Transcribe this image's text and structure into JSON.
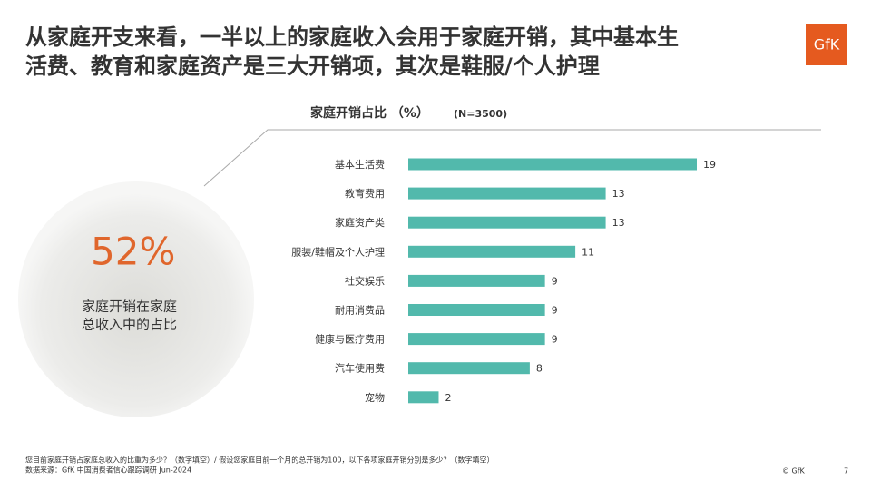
{
  "header": {
    "title": [
      "从家庭开支来看，一半以上的家庭收入会用于家庭开销，其中基本生",
      "活费、教育和家庭资产是三大开销项，其次是鞋服/个人护理"
    ]
  },
  "logo": "GfK",
  "highlight": {
    "figure": "52%",
    "caption": [
      "家庭开销在家庭",
      "总收入中的占比"
    ]
  },
  "chart_data": {
    "type": "bar",
    "orientation": "horizontal",
    "title": "家庭开销占比 （%）",
    "subtitle": "(N=3500)",
    "categories": [
      "基本生活费",
      "教育费用",
      "家庭资产类",
      "服装/鞋帽及个人护理",
      "社交娱乐",
      "耐用消费品",
      "健康与医疗费用",
      "汽车使用费",
      "宠物"
    ],
    "values": [
      19,
      13,
      13,
      11,
      9,
      9,
      9,
      8,
      2
    ],
    "color": "#52b9ac"
  },
  "footer": {
    "notes": [
      "您目前家庭开销占家庭总收入的比重为多少？（数字填空）/ 假设您家庭目前一个月的总开销为100，以下各项家庭开销分别是多少？（数字填空）",
      "数据来源：GfK 中国消费者信心跟踪调研 Jun-2024"
    ],
    "copyright": "© GfK",
    "page": "7"
  }
}
